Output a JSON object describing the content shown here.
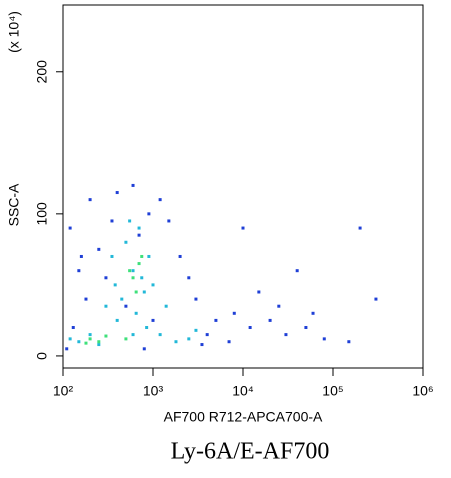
{
  "chart_data": {
    "type": "scatter",
    "xlabel": "AF700 R712-APCA700-A",
    "ylabel": "SSC-A",
    "y_multiplier": "(x 10⁴)",
    "caption": "Ly-6A/E-AF700",
    "xlog": true,
    "xlim": [
      100,
      1000000
    ],
    "xticks": [
      {
        "value": 100,
        "label": "10²"
      },
      {
        "value": 1000,
        "label": "10³"
      },
      {
        "value": 10000,
        "label": "10⁴"
      },
      {
        "value": 100000,
        "label": "10⁵"
      },
      {
        "value": 1000000,
        "label": "10⁶"
      }
    ],
    "ylim": [
      -8.5,
      247
    ],
    "yticks": [
      0,
      100,
      200
    ],
    "series": [
      {
        "color": "#1f3fd6",
        "x": [
          120,
          150,
          200,
          250,
          180,
          400,
          600,
          900,
          1500,
          2000,
          3000,
          5000,
          8000,
          12000,
          20000,
          30000,
          50000,
          80000,
          150000,
          200000,
          7000,
          4000,
          2500,
          1200,
          350,
          130,
          110,
          800,
          3500,
          60000,
          300000,
          15000,
          40000,
          10000,
          25000,
          1000,
          700,
          500,
          300,
          160
        ],
        "values": [
          90,
          60,
          110,
          75,
          40,
          115,
          120,
          100,
          95,
          70,
          40,
          25,
          30,
          20,
          25,
          15,
          20,
          12,
          10,
          90,
          10,
          15,
          55,
          110,
          95,
          20,
          5,
          5,
          8,
          30,
          40,
          45,
          60,
          90,
          35,
          25,
          85,
          35,
          55,
          70
        ]
      },
      {
        "color": "#22b8d8",
        "x": [
          350,
          500,
          600,
          700,
          800,
          450,
          650,
          900,
          550,
          750,
          400,
          300,
          200,
          150,
          250,
          1200,
          1800,
          2500,
          1000,
          850,
          380,
          120,
          1400,
          600,
          3000
        ],
        "values": [
          70,
          80,
          60,
          90,
          45,
          40,
          30,
          70,
          95,
          55,
          25,
          35,
          15,
          10,
          8,
          15,
          10,
          12,
          50,
          20,
          50,
          12,
          35,
          15,
          18
        ]
      },
      {
        "color": "#3ee07a",
        "x": [
          600,
          700,
          650,
          750,
          550,
          200,
          250,
          300,
          180,
          500
        ],
        "values": [
          55,
          65,
          45,
          70,
          60,
          12,
          10,
          14,
          9,
          12
        ]
      }
    ]
  }
}
